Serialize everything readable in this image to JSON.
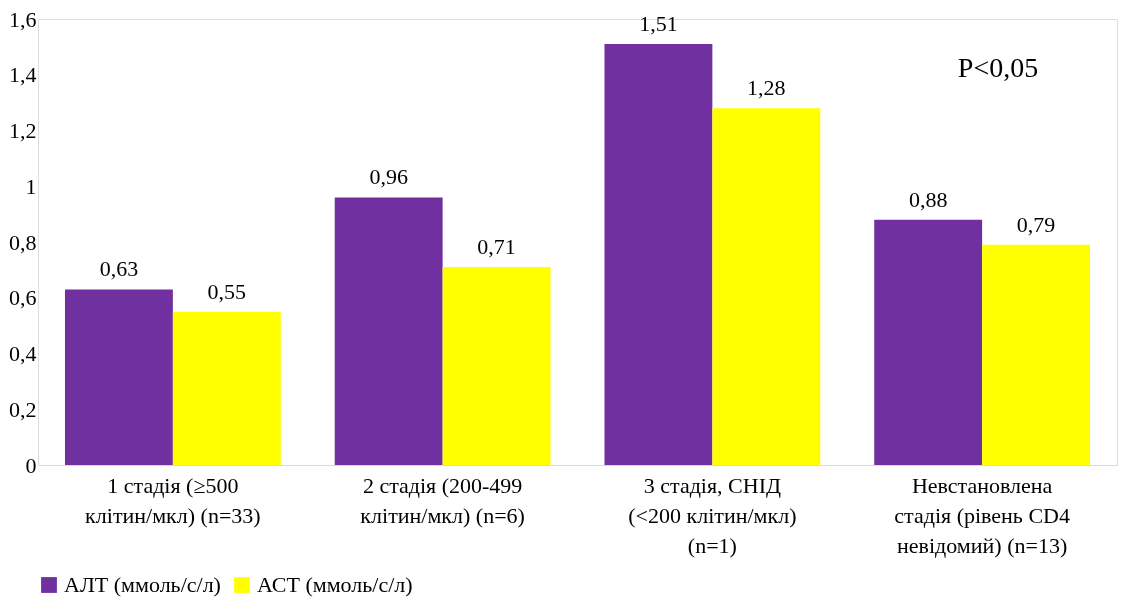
{
  "chart_data": {
    "type": "bar",
    "categories": [
      "1 стадія (≥500 клітин/мкл) (n=33)",
      "2 стадія (200-499 клітин/мкл) (n=6)",
      "3 стадія, СНІД (<200 клітин/мкл) (n=1)",
      "Невстановлена стадія (рівень CD4 невідомий) (n=13)"
    ],
    "series": [
      {
        "name": "АЛТ (ммоль/с/л)",
        "color": "#7030a0",
        "values": [
          0.63,
          0.96,
          1.51,
          0.88
        ],
        "value_labels": [
          "0,63",
          "0,96",
          "1,51",
          "0,88"
        ]
      },
      {
        "name": "АСТ (ммоль/с/л)",
        "color": "#ffff00",
        "values": [
          0.55,
          0.71,
          1.28,
          0.79
        ],
        "value_labels": [
          "0,55",
          "0,71",
          "1,28",
          "0,79"
        ]
      }
    ],
    "ylim": [
      0,
      1.6
    ],
    "yticks": [
      0,
      {
        "value": 0.2,
        "label": "0,2"
      },
      {
        "value": 0.4,
        "label": "0,4"
      },
      {
        "value": 0.6,
        "label": "0,6"
      },
      {
        "value": 0.8,
        "label": "0,8"
      },
      1,
      {
        "value": 1.2,
        "label": "1,2"
      },
      {
        "value": 1.4,
        "label": "1,4"
      },
      {
        "value": 1.6,
        "label": "1,6"
      }
    ],
    "grid": false,
    "legend": "bottom",
    "annotations": [
      "P<0,05"
    ]
  }
}
